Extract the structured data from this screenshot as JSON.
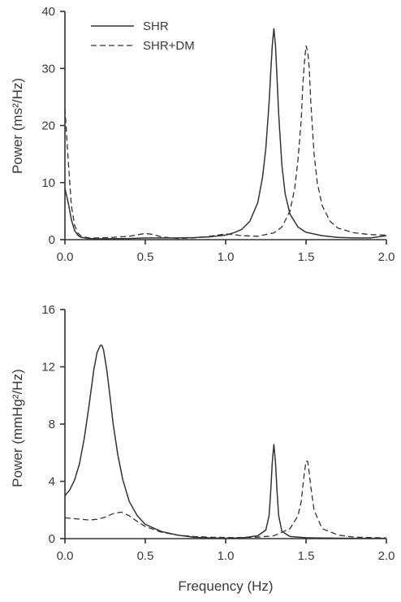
{
  "chart_data": [
    {
      "type": "line",
      "title": "",
      "xlabel": "",
      "ylabel": "Power (ms²/Hz)",
      "xlim": [
        0,
        2.0
      ],
      "ylim": [
        0,
        40
      ],
      "xticks": [
        0.0,
        0.5,
        1.0,
        1.5,
        2.0
      ],
      "yticks": [
        0,
        10,
        20,
        30,
        40
      ],
      "grid": false,
      "legend": "top-left",
      "series": [
        {
          "name": "SHR",
          "style": "solid",
          "x": [
            0,
            0.02,
            0.04,
            0.06,
            0.08,
            0.1,
            0.15,
            0.2,
            0.3,
            0.4,
            0.5,
            0.6,
            0.7,
            0.8,
            0.9,
            1.0,
            1.05,
            1.1,
            1.15,
            1.2,
            1.23,
            1.25,
            1.27,
            1.28,
            1.29,
            1.3,
            1.31,
            1.32,
            1.33,
            1.35,
            1.37,
            1.4,
            1.45,
            1.5,
            1.6,
            1.7,
            1.8,
            1.9,
            2.0
          ],
          "y": [
            9,
            6.5,
            3.5,
            1.6,
            0.8,
            0.4,
            0.2,
            0.15,
            0.15,
            0.2,
            0.3,
            0.3,
            0.3,
            0.35,
            0.5,
            0.8,
            1.2,
            1.8,
            3.2,
            6.5,
            11,
            16,
            24,
            29,
            34,
            37,
            34,
            28,
            22,
            13,
            8,
            4.5,
            2.2,
            1.3,
            0.7,
            0.4,
            0.3,
            0.3,
            0.7
          ]
        },
        {
          "name": "SHR+DM",
          "style": "dashed",
          "x": [
            0,
            0.02,
            0.04,
            0.06,
            0.08,
            0.1,
            0.15,
            0.2,
            0.3,
            0.4,
            0.5,
            0.55,
            0.6,
            0.7,
            0.8,
            0.9,
            1.0,
            1.05,
            1.1,
            1.2,
            1.3,
            1.35,
            1.4,
            1.43,
            1.45,
            1.47,
            1.48,
            1.49,
            1.5,
            1.51,
            1.52,
            1.53,
            1.55,
            1.57,
            1.6,
            1.65,
            1.7,
            1.8,
            1.9,
            2.0
          ],
          "y": [
            23,
            14,
            6,
            2.5,
            1.2,
            0.6,
            0.3,
            0.3,
            0.4,
            0.6,
            1.1,
            0.9,
            0.5,
            0.2,
            0.3,
            0.6,
            1.0,
            0.9,
            0.7,
            0.6,
            1.2,
            2.2,
            5,
            9,
            14,
            21,
            27,
            31,
            34,
            33,
            30,
            24,
            15,
            10,
            6,
            3.2,
            2,
            1.2,
            0.9,
            0.8
          ]
        }
      ]
    },
    {
      "type": "line",
      "title": "",
      "xlabel": "Frequency (Hz)",
      "ylabel": "Power (mmHg²/Hz)",
      "xlim": [
        0,
        2.0
      ],
      "ylim": [
        0,
        16
      ],
      "xticks": [
        0.0,
        0.5,
        1.0,
        1.5,
        2.0
      ],
      "yticks": [
        0,
        4,
        8,
        12,
        16
      ],
      "grid": false,
      "series": [
        {
          "name": "SHR",
          "style": "solid",
          "x": [
            0,
            0.03,
            0.06,
            0.09,
            0.12,
            0.15,
            0.18,
            0.2,
            0.22,
            0.23,
            0.24,
            0.26,
            0.28,
            0.3,
            0.33,
            0.36,
            0.4,
            0.45,
            0.5,
            0.6,
            0.7,
            0.8,
            0.9,
            1.0,
            1.1,
            1.2,
            1.25,
            1.27,
            1.28,
            1.29,
            1.3,
            1.31,
            1.32,
            1.33,
            1.35,
            1.4,
            1.5,
            1.6,
            1.8,
            2.0
          ],
          "y": [
            3,
            3.4,
            4.1,
            5.2,
            7,
            9.3,
            11.8,
            13,
            13.5,
            13.5,
            13.2,
            11.8,
            10,
            8,
            5.8,
            4.1,
            2.6,
            1.6,
            1,
            0.5,
            0.25,
            0.1,
            0.05,
            0.03,
            0.05,
            0.2,
            0.6,
            1.6,
            3.2,
            5.3,
            6.6,
            5.3,
            3.2,
            1.6,
            0.5,
            0.15,
            0.06,
            0.04,
            0.02,
            0.02
          ]
        },
        {
          "name": "SHR+DM",
          "style": "dashed",
          "x": [
            0,
            0.05,
            0.1,
            0.15,
            0.2,
            0.25,
            0.3,
            0.35,
            0.4,
            0.45,
            0.5,
            0.6,
            0.7,
            0.8,
            0.9,
            1.0,
            1.1,
            1.2,
            1.3,
            1.4,
            1.45,
            1.47,
            1.48,
            1.49,
            1.5,
            1.51,
            1.52,
            1.53,
            1.55,
            1.6,
            1.7,
            1.8,
            2.0
          ],
          "y": [
            1.45,
            1.4,
            1.35,
            1.3,
            1.35,
            1.5,
            1.75,
            1.85,
            1.6,
            1.2,
            0.85,
            0.45,
            0.25,
            0.15,
            0.1,
            0.08,
            0.08,
            0.1,
            0.2,
            0.7,
            1.6,
            2.6,
            3.6,
            4.6,
            5.4,
            5.4,
            4.6,
            3.6,
            2.0,
            0.7,
            0.25,
            0.1,
            0.05
          ]
        }
      ]
    }
  ]
}
